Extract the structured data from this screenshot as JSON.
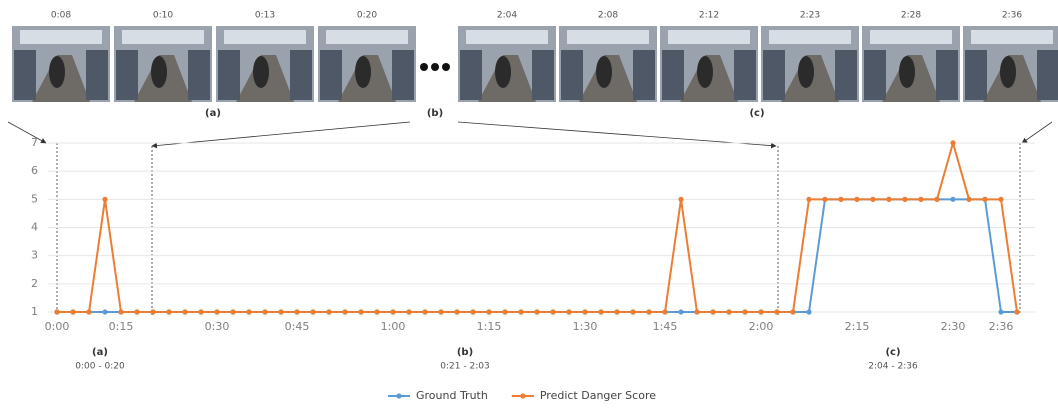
{
  "thumbnails": {
    "left_times": [
      "0:08",
      "0:10",
      "0:13",
      "0:20"
    ],
    "right_times": [
      "2:04",
      "2:08",
      "2:12",
      "2:23",
      "2:28",
      "2:36"
    ],
    "group_labels": [
      "(a)",
      "(b)",
      "(c)"
    ]
  },
  "chart_data": {
    "type": "line",
    "categories": [
      "0:00",
      null,
      null,
      null,
      "0:15",
      null,
      null,
      null,
      null,
      null,
      "0:30",
      null,
      null,
      null,
      null,
      "0:45",
      null,
      null,
      null,
      null,
      null,
      "1:00",
      null,
      null,
      null,
      null,
      null,
      "1:15",
      null,
      null,
      null,
      null,
      null,
      "1:30",
      null,
      null,
      null,
      null,
      "1:45",
      null,
      null,
      null,
      null,
      null,
      "2:00",
      null,
      null,
      null,
      null,
      null,
      "2:15",
      null,
      null,
      null,
      null,
      null,
      "2:30",
      null,
      null,
      "2:36",
      null
    ],
    "series": [
      {
        "name": "Ground Truth",
        "color": "#5b9bd5",
        "values": [
          1,
          1,
          1,
          1,
          1,
          1,
          1,
          1,
          1,
          1,
          1,
          1,
          1,
          1,
          1,
          1,
          1,
          1,
          1,
          1,
          1,
          1,
          1,
          1,
          1,
          1,
          1,
          1,
          1,
          1,
          1,
          1,
          1,
          1,
          1,
          1,
          1,
          1,
          1,
          1,
          1,
          1,
          1,
          1,
          1,
          1,
          1,
          1,
          5,
          5,
          5,
          5,
          5,
          5,
          5,
          5,
          5,
          5,
          5,
          1,
          1
        ]
      },
      {
        "name": "Predict Danger Score",
        "color": "#ed7d31",
        "values": [
          1,
          1,
          1,
          5,
          1,
          1,
          1,
          1,
          1,
          1,
          1,
          1,
          1,
          1,
          1,
          1,
          1,
          1,
          1,
          1,
          1,
          1,
          1,
          1,
          1,
          1,
          1,
          1,
          1,
          1,
          1,
          1,
          1,
          1,
          1,
          1,
          1,
          1,
          1,
          5,
          1,
          1,
          1,
          1,
          1,
          1,
          1,
          5,
          5,
          5,
          5,
          5,
          5,
          5,
          5,
          5,
          7,
          5,
          5,
          5,
          1
        ]
      }
    ],
    "ylim": [
      1,
      7
    ],
    "yticks": [
      1,
      2,
      3,
      4,
      5,
      6,
      7
    ],
    "grid": true,
    "legend": "bottom",
    "segments": [
      {
        "label": "(a)",
        "range": "0:00 - 0:20"
      },
      {
        "label": "(b)",
        "range": "0:21 - 2:03"
      },
      {
        "label": "(c)",
        "range": "2:04 - 2:36"
      }
    ]
  }
}
